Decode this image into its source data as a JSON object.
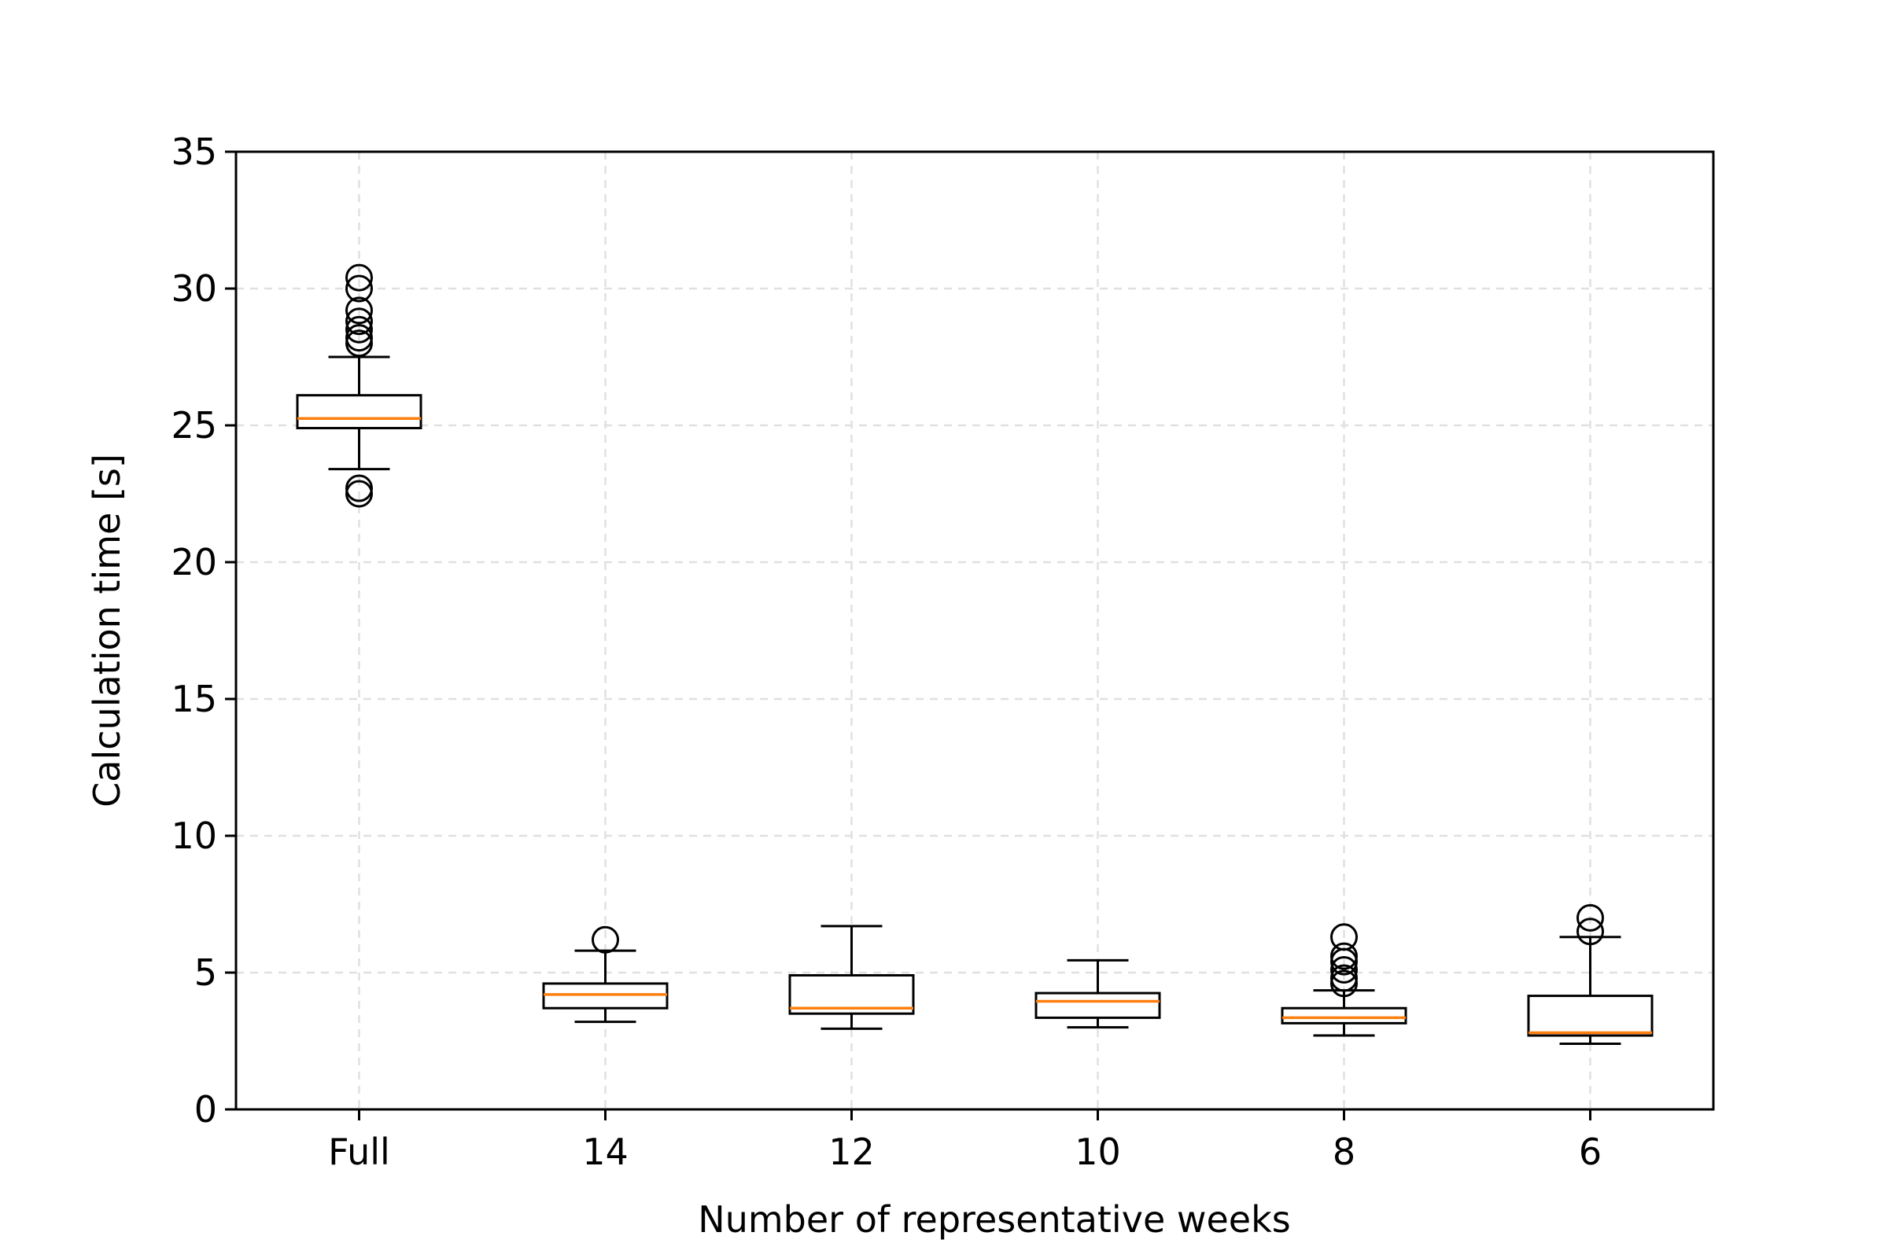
{
  "chart_data": {
    "type": "box",
    "xlabel": "Number of representative weeks",
    "ylabel": "Calculation time [s]",
    "ylim": [
      0,
      35
    ],
    "yticks": [
      0,
      5,
      10,
      15,
      20,
      25,
      30,
      35
    ],
    "grid": true,
    "categories": [
      "Full",
      "14",
      "12",
      "10",
      "8",
      "6"
    ],
    "boxes": [
      {
        "category": "Full",
        "whisker_low": 23.4,
        "q1": 24.9,
        "median": 25.25,
        "q3": 26.1,
        "whisker_high": 27.5,
        "outliers": [
          22.5,
          22.7,
          28.0,
          28.2,
          28.5,
          28.8,
          29.2,
          30.0,
          30.4
        ]
      },
      {
        "category": "14",
        "whisker_low": 3.2,
        "q1": 3.7,
        "median": 4.2,
        "q3": 4.6,
        "whisker_high": 5.8,
        "outliers": [
          6.2
        ]
      },
      {
        "category": "12",
        "whisker_low": 2.95,
        "q1": 3.5,
        "median": 3.7,
        "q3": 4.9,
        "whisker_high": 6.7,
        "outliers": []
      },
      {
        "category": "10",
        "whisker_low": 3.0,
        "q1": 3.35,
        "median": 3.95,
        "q3": 4.25,
        "whisker_high": 5.45,
        "outliers": []
      },
      {
        "category": "8",
        "whisker_low": 2.7,
        "q1": 3.15,
        "median": 3.35,
        "q3": 3.7,
        "whisker_high": 4.35,
        "outliers": [
          4.6,
          4.8,
          5.1,
          5.4,
          5.6,
          6.3
        ]
      },
      {
        "category": "6",
        "whisker_low": 2.4,
        "q1": 2.7,
        "median": 2.8,
        "q3": 4.15,
        "whisker_high": 6.3,
        "outliers": [
          6.5,
          7.0
        ]
      }
    ],
    "colors": {
      "box": "#000000",
      "median": "#ff7f0e",
      "grid": "#e0e0e0"
    }
  }
}
